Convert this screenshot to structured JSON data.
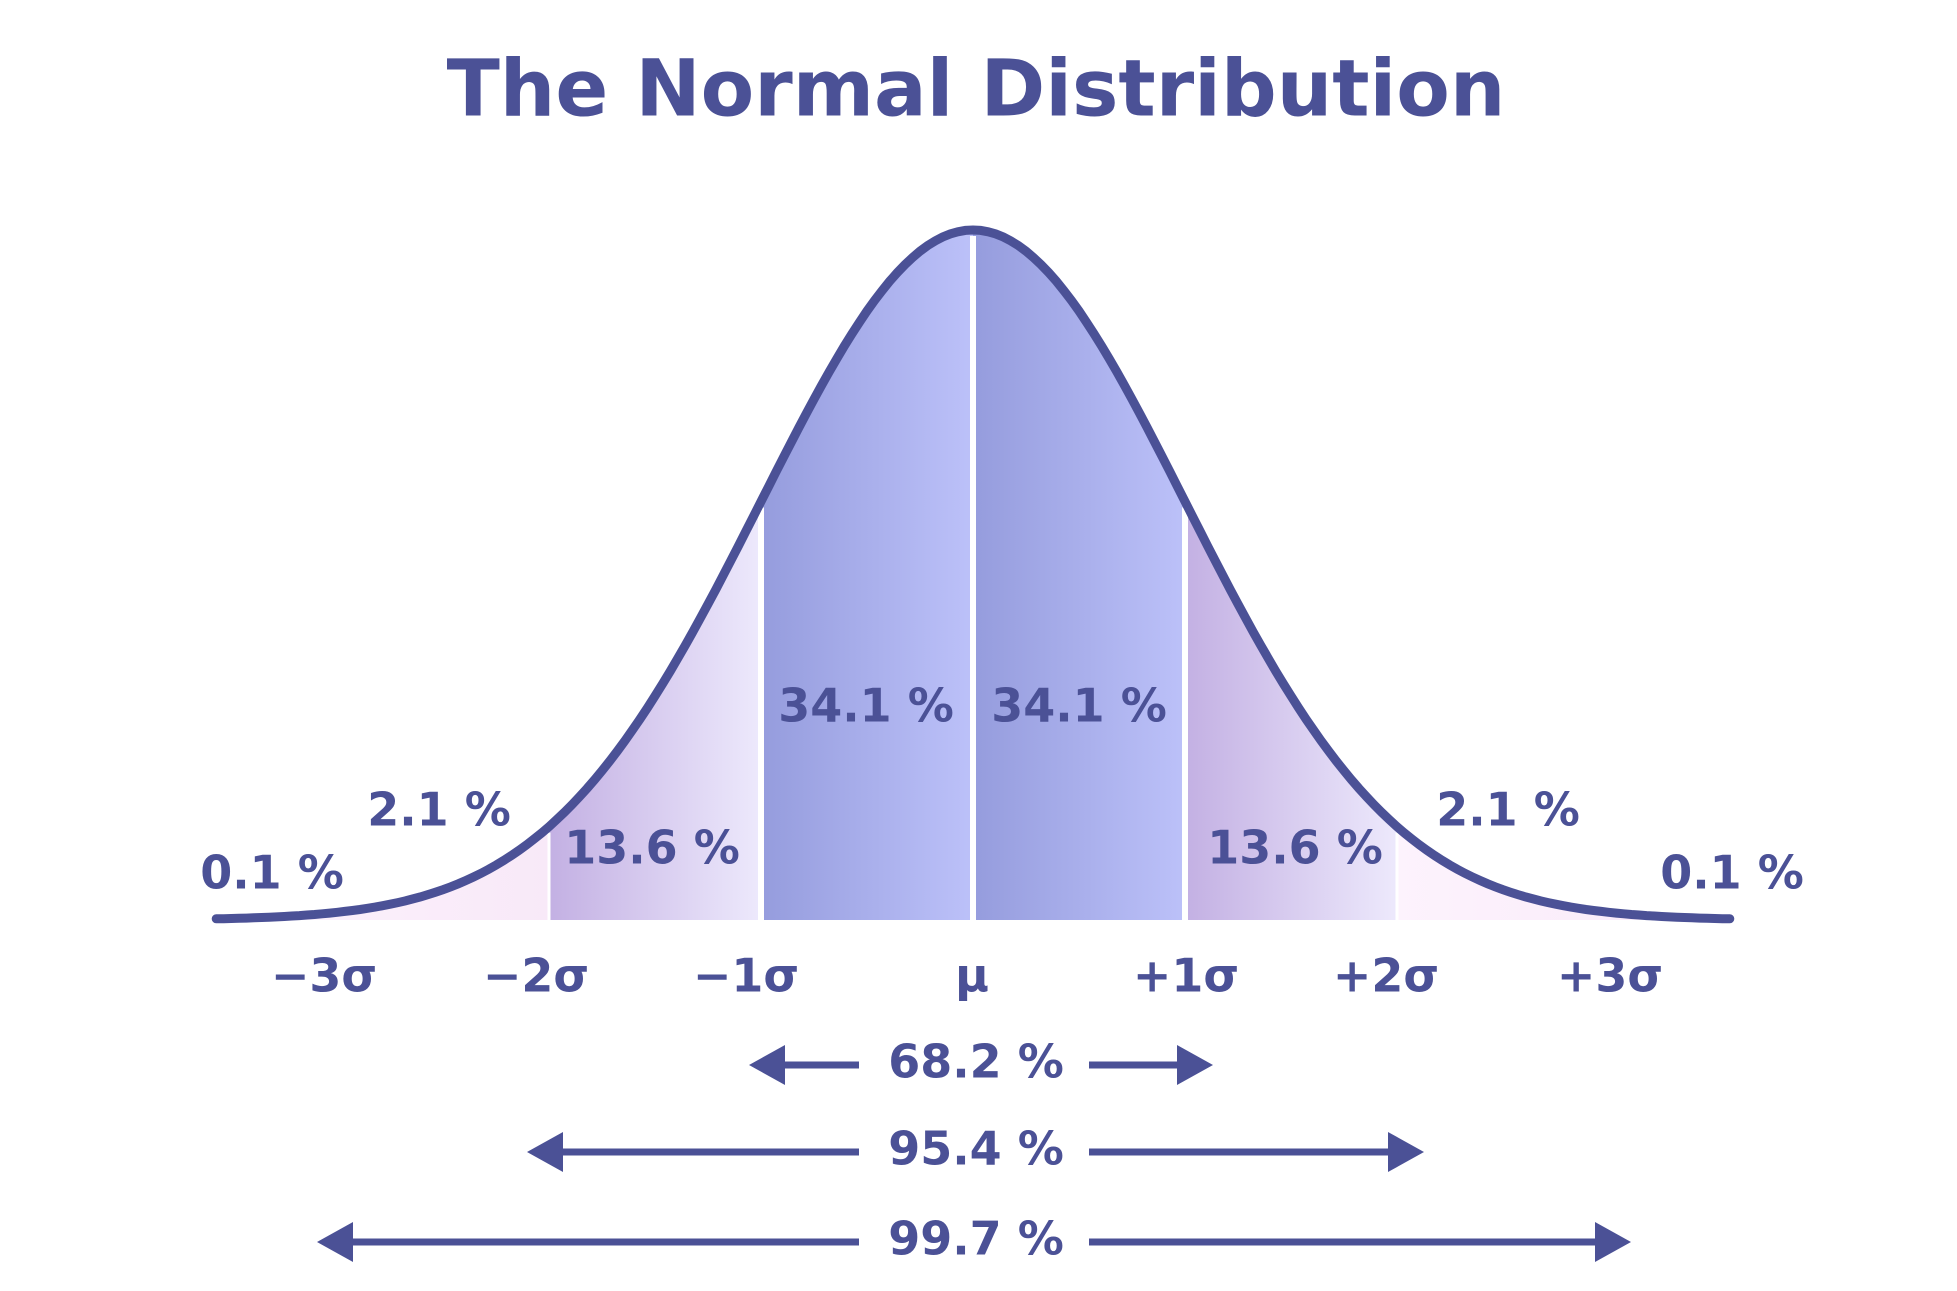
{
  "title": "The Normal Distribution",
  "segment_labels": [
    "0.1 %",
    "2.1 %",
    "13.6 %",
    "34.1 %",
    "34.1 %",
    "13.6 %",
    "2.1 %",
    "0.1 %"
  ],
  "sigma_labels": [
    "−3σ",
    "−2σ",
    "−1σ",
    "μ",
    "+1σ",
    "+2σ",
    "+3σ"
  ],
  "range_labels": [
    "68.2 %",
    "95.4 %",
    "99.7 %"
  ]
}
